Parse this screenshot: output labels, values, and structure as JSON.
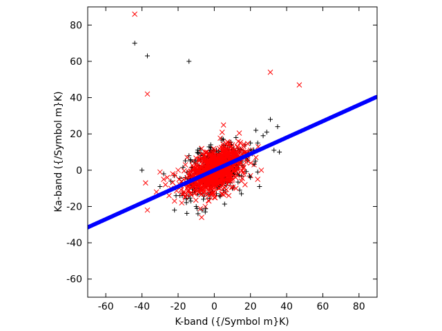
{
  "chart_data": {
    "type": "scatter",
    "xlabel": "K-band ({/Symbol m}K)",
    "ylabel": "Ka-band ({/Symbol m}K)",
    "xlim": [
      -70,
      90
    ],
    "ylim": [
      -70,
      90
    ],
    "xticks": [
      -60,
      -40,
      -20,
      0,
      20,
      40,
      60,
      80
    ],
    "yticks": [
      -60,
      -40,
      -20,
      0,
      20,
      40,
      60,
      80
    ],
    "grid": false,
    "legend": "none",
    "colors": {
      "series_plus": "#000000",
      "series_x": "#ff0000",
      "fit_line": "#0000ff"
    },
    "series": [
      {
        "marker": "plus",
        "color": "#000000",
        "points": [
          [
            -44,
            70
          ],
          [
            -37,
            63
          ],
          [
            -14,
            60
          ],
          [
            31,
            28
          ],
          [
            35,
            24
          ],
          [
            29,
            21
          ],
          [
            27,
            19
          ],
          [
            23,
            22
          ],
          [
            24,
            15
          ],
          [
            36,
            10
          ],
          [
            33,
            11
          ],
          [
            24,
            -1
          ],
          [
            25,
            -9
          ],
          [
            -15,
            -6
          ],
          [
            -16,
            -4
          ],
          [
            -22,
            -22
          ],
          [
            -9,
            -24
          ],
          [
            -5,
            -23
          ],
          [
            -10,
            -20
          ],
          [
            -13,
            -17
          ],
          [
            -22,
            -3
          ],
          [
            -28,
            -2
          ],
          [
            -40,
            0
          ],
          [
            -30,
            -9
          ],
          [
            -6,
            -16
          ],
          [
            14,
            -11
          ],
          [
            15,
            -13
          ],
          [
            20,
            15
          ],
          [
            5,
            17
          ],
          [
            -8,
            12
          ],
          [
            -2,
            14
          ],
          [
            12,
            18
          ],
          [
            -14,
            8
          ],
          [
            -19,
            -14
          ],
          [
            18,
            6
          ],
          [
            10,
            -10
          ],
          [
            3,
            -14
          ],
          [
            -4,
            -13
          ],
          [
            -11,
            -11
          ],
          [
            13,
            12
          ],
          [
            8,
            15
          ],
          [
            -1,
            10
          ],
          [
            6,
            -12
          ],
          [
            20,
            -4
          ],
          [
            -24,
            -6
          ],
          [
            17,
            14
          ],
          [
            21,
            9
          ],
          [
            -7,
            9
          ]
        ]
      },
      {
        "marker": "x",
        "color": "#ff0000",
        "points": [
          [
            -44,
            86
          ],
          [
            -37,
            42
          ],
          [
            31,
            54
          ],
          [
            47,
            47
          ],
          [
            -38,
            -7
          ],
          [
            -37,
            -22
          ],
          [
            -32,
            -12
          ],
          [
            -30,
            -1
          ],
          [
            -27,
            -8
          ],
          [
            -26,
            -4
          ],
          [
            -25,
            -14
          ],
          [
            -22,
            -17
          ],
          [
            -18,
            -18
          ],
          [
            -16,
            -15
          ],
          [
            -7,
            -26
          ],
          [
            -5,
            -20
          ],
          [
            -3,
            -17
          ],
          [
            0,
            -15
          ],
          [
            4,
            -13
          ],
          [
            8,
            -14
          ],
          [
            12,
            -10
          ],
          [
            15,
            -6
          ],
          [
            20,
            -3
          ],
          [
            24,
            -5
          ],
          [
            26,
            0
          ],
          [
            22,
            3
          ],
          [
            18,
            9
          ],
          [
            15,
            12
          ],
          [
            10,
            14
          ],
          [
            5,
            13
          ],
          [
            0,
            11
          ],
          [
            -4,
            10
          ],
          [
            -8,
            8
          ],
          [
            -12,
            5
          ],
          [
            -16,
            3
          ],
          [
            -20,
            0
          ],
          [
            -23,
            -2
          ],
          [
            -19,
            -8
          ],
          [
            -14,
            -11
          ],
          [
            -10,
            -8
          ],
          [
            -6,
            -6
          ],
          [
            -2,
            -4
          ],
          [
            2,
            -2
          ],
          [
            6,
            0
          ],
          [
            10,
            2
          ],
          [
            14,
            4
          ],
          [
            18,
            6
          ],
          [
            -13,
            -3
          ],
          [
            -9,
            -1
          ],
          [
            -5,
            1
          ],
          [
            -1,
            3
          ],
          [
            3,
            5
          ],
          [
            7,
            7
          ],
          [
            11,
            8
          ],
          [
            16,
            1
          ],
          [
            -17,
            -5
          ],
          [
            -21,
            -9
          ],
          [
            9,
            -6
          ],
          [
            13,
            -2
          ],
          [
            -3,
            7
          ],
          [
            1,
            8
          ],
          [
            5,
            -8
          ],
          [
            -7,
            -10
          ],
          [
            -11,
            -13
          ],
          [
            17,
            -8
          ],
          [
            20,
            11
          ],
          [
            -15,
            7
          ],
          [
            23,
            7
          ],
          [
            -24,
            -10
          ],
          [
            -28,
            -5
          ]
        ]
      }
    ],
    "fit_line": {
      "color": "#0000ff",
      "slope": 0.45,
      "intercept": 0,
      "x_range": [
        -70,
        90
      ]
    }
  }
}
